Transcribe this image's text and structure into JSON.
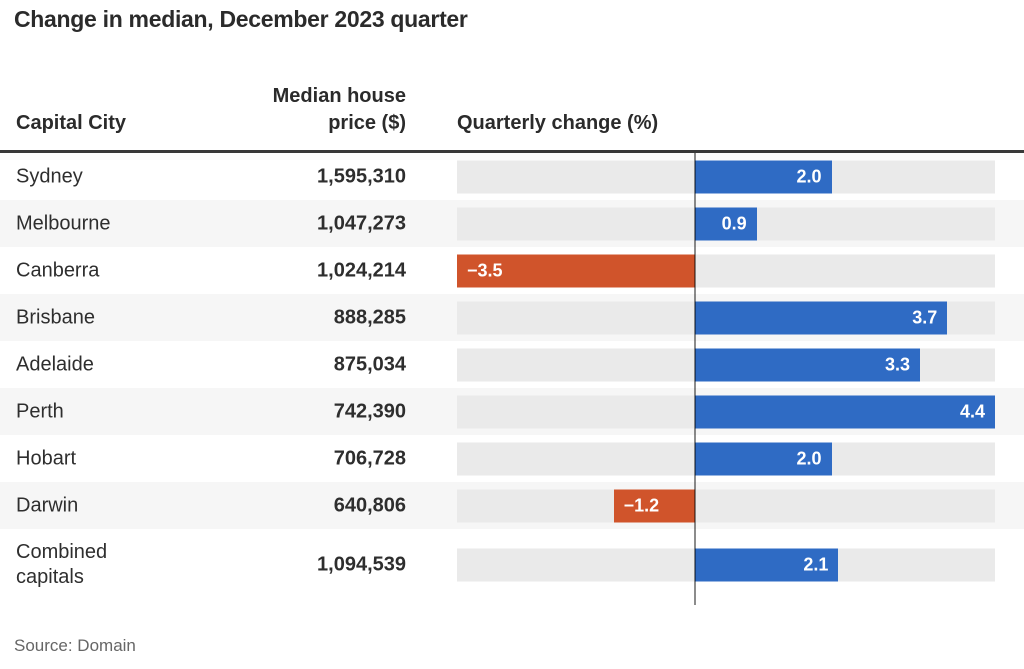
{
  "title": "Change in median, December 2023 quarter",
  "source": "Source: Domain",
  "table": {
    "headers": {
      "city": "Capital City",
      "price": "Median house\nprice ($)",
      "change": "Quarterly change (%)"
    },
    "rows": [
      {
        "city": "Sydney",
        "price": "1,595,310",
        "change": 2.0,
        "change_label": "2.0"
      },
      {
        "city": "Melbourne",
        "price": "1,047,273",
        "change": 0.9,
        "change_label": "0.9"
      },
      {
        "city": "Canberra",
        "price": "1,024,214",
        "change": -3.5,
        "change_label": "−3.5"
      },
      {
        "city": "Brisbane",
        "price": "888,285",
        "change": 3.7,
        "change_label": "3.7"
      },
      {
        "city": "Adelaide",
        "price": "875,034",
        "change": 3.3,
        "change_label": "3.3"
      },
      {
        "city": "Perth",
        "price": "742,390",
        "change": 4.4,
        "change_label": "4.4"
      },
      {
        "city": "Hobart",
        "price": "706,728",
        "change": 2.0,
        "change_label": "2.0"
      },
      {
        "city": "Darwin",
        "price": "640,806",
        "change": -1.2,
        "change_label": "−1.2"
      },
      {
        "city": "Combined capitals",
        "price": "1,094,539",
        "change": 2.1,
        "change_label": "2.1"
      }
    ]
  },
  "chart_data": {
    "type": "bar",
    "orientation": "horizontal",
    "title": "Change in median, December 2023 quarter",
    "categories": [
      "Sydney",
      "Melbourne",
      "Canberra",
      "Brisbane",
      "Adelaide",
      "Perth",
      "Hobart",
      "Darwin",
      "Combined capitals"
    ],
    "series": [
      {
        "name": "Median house price ($)",
        "values": [
          1595310,
          1047273,
          1024214,
          888285,
          875034,
          742390,
          706728,
          640806,
          1094539
        ]
      },
      {
        "name": "Quarterly change (%)",
        "values": [
          2.0,
          0.9,
          -3.5,
          3.7,
          3.3,
          4.4,
          2.0,
          -1.2,
          2.1
        ]
      }
    ],
    "xlabel": "Quarterly change (%)",
    "xlim": [
      -3.5,
      4.4
    ],
    "grid": false,
    "legend": "none",
    "annotations": [
      "2.0",
      "0.9",
      "−3.5",
      "3.7",
      "3.3",
      "4.4",
      "2.0",
      "−1.2",
      "2.1"
    ]
  },
  "colors": {
    "positive_bar": "#2f6bc4",
    "negative_bar": "#d0542b",
    "track": "#eaeaea",
    "alt_row": "#f6f6f6",
    "header_rule": "#3a3a3a",
    "zero_line": "rgba(0,0,0,0.45)",
    "title_text": "#2b2b2b",
    "body_text": "#2e2e2e",
    "bar_label_text": "#ffffff",
    "source_text": "#666666"
  }
}
